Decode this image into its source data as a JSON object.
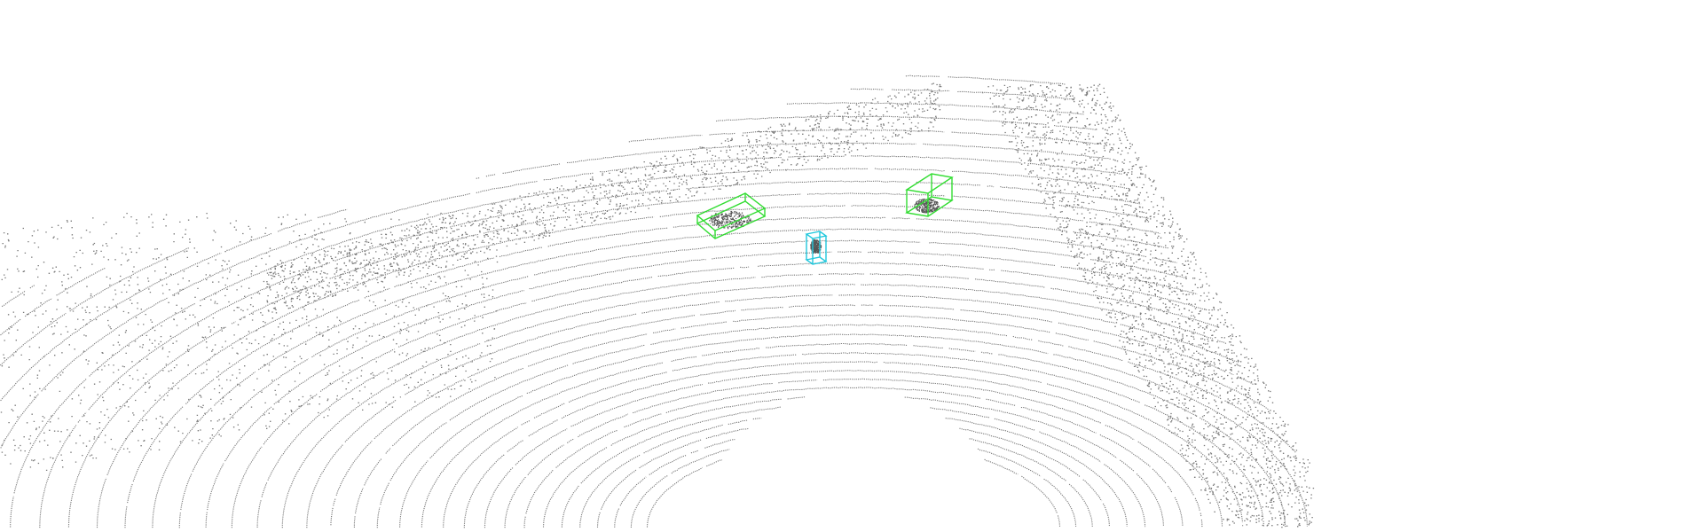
{
  "scene": {
    "kind": "lidar-point-cloud-3d-detections",
    "background_color": "#ffffff",
    "point_color": "#7a7a7a"
  },
  "detections": [
    {
      "class": "car",
      "color": "#33dd33"
    },
    {
      "class": "car",
      "color": "#33dd33"
    },
    {
      "class": "pedestrian",
      "color": "#22c8dd"
    }
  ]
}
